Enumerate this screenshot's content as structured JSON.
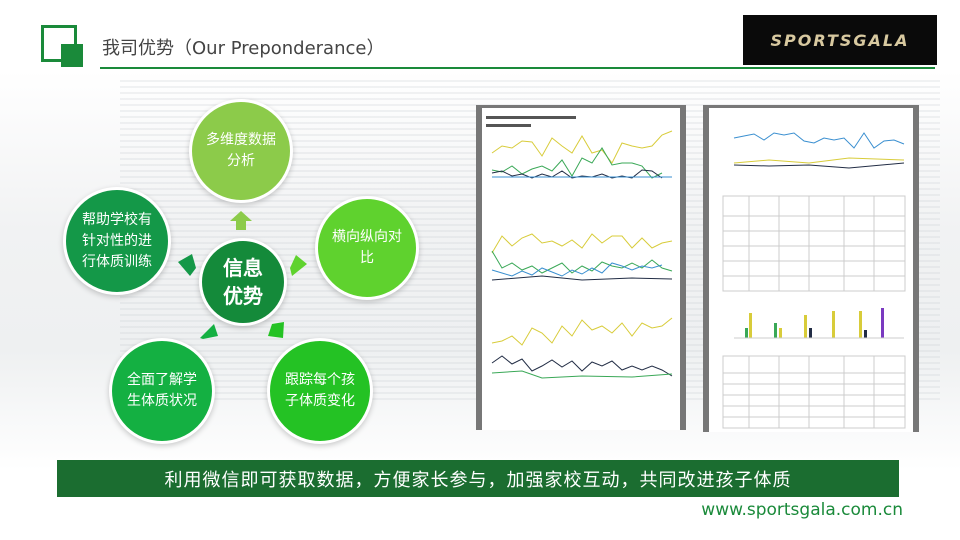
{
  "header": {
    "title": "我司优势（Our Preponderance）",
    "logo_text": "SPORTSGALA",
    "accent": "#1a8a3a"
  },
  "diagram": {
    "center": {
      "line1": "信息",
      "line2": "优势",
      "color": "#148a3a"
    },
    "nodes": [
      {
        "text": "多维度数据分析",
        "color": "#8ccb4a"
      },
      {
        "text": "横向纵向对比",
        "color": "#5fd22e"
      },
      {
        "text": "跟踪每个孩子体质变化",
        "color": "#24c224"
      },
      {
        "text": "全面了解学生体质状况",
        "color": "#14b042"
      },
      {
        "text": "帮助学校有针对性的进行体质训练",
        "color": "#149848"
      }
    ]
  },
  "report_images": {
    "left": "report-charts-page",
    "right": "report-tables-page"
  },
  "banner": {
    "text": "利用微信即可获取数据，方便家长参与，加强家校互动，共同改进孩子体质",
    "color": "#1b6d30"
  },
  "footer": {
    "website": "www.sportsgala.com.cn"
  }
}
